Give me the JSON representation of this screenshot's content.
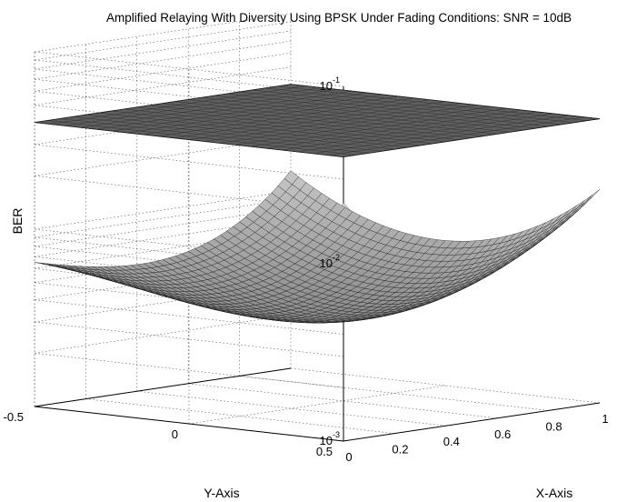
{
  "chart_data": {
    "type": "surface",
    "title": "Amplified Relaying With Diversity Using BPSK Under Fading Conditions: SNR = 10dB",
    "xlabel": "X-Axis",
    "ylabel": "Y-Axis",
    "zlabel": "BER",
    "zscale": "log",
    "xlim": [
      0,
      1
    ],
    "ylim": [
      -0.5,
      0.5
    ],
    "zlim": [
      0.001,
      0.1
    ],
    "x_ticks": [
      "0",
      "0.2",
      "0.4",
      "0.6",
      "0.8",
      "1"
    ],
    "y_ticks": [
      "-0.5",
      "0",
      "0.5"
    ],
    "z_ticks": [
      {
        "base": "10",
        "exp": "-3"
      },
      {
        "base": "10",
        "exp": "-2"
      },
      {
        "base": "10",
        "exp": "-1"
      }
    ],
    "grid": true,
    "surfaces": [
      {
        "description": "flat plane",
        "ber": 0.04
      },
      {
        "description": "bowl surface",
        "ber_grid_x": [
          0,
          0.25,
          0.5,
          0.75,
          1
        ],
        "ber_grid_y": [
          -0.5,
          -0.25,
          0,
          0.25,
          0.5
        ],
        "ber_min": 0.003,
        "ber_corner_x0_y0p5": 0.022,
        "ber_corner_x0_ym0p5": 0.0065,
        "ber_corner_x1_ym0p5": 0.013,
        "ber_corner_x1_y0p5": 0.016
      }
    ]
  }
}
